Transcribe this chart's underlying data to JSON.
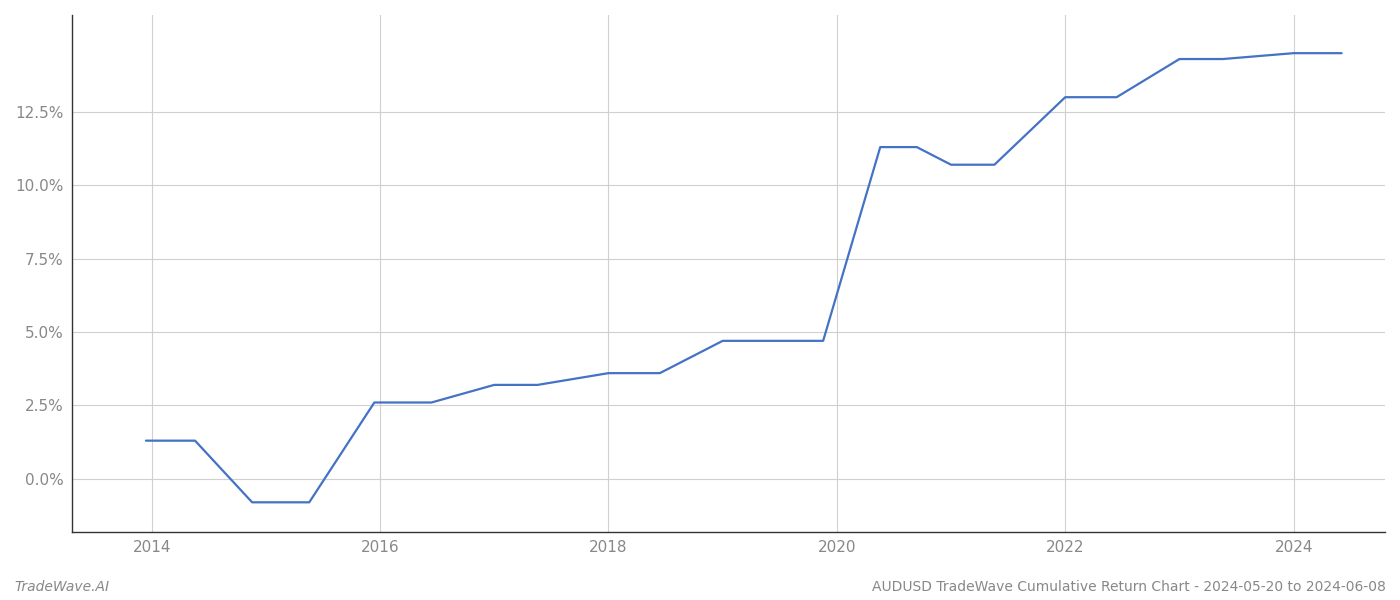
{
  "x_years": [
    2013.95,
    2014.38,
    2014.88,
    2015.38,
    2015.95,
    2016.45,
    2017.0,
    2017.38,
    2018.0,
    2018.45,
    2019.0,
    2019.38,
    2019.88,
    2020.38,
    2020.7,
    2021.0,
    2021.38,
    2022.0,
    2022.45,
    2023.0,
    2023.38,
    2024.0,
    2024.42
  ],
  "y_values": [
    0.013,
    0.013,
    -0.008,
    -0.008,
    0.026,
    0.026,
    0.032,
    0.032,
    0.036,
    0.036,
    0.047,
    0.047,
    0.047,
    0.113,
    0.113,
    0.107,
    0.107,
    0.13,
    0.13,
    0.143,
    0.143,
    0.145,
    0.145
  ],
  "line_color": "#4472c4",
  "line_width": 1.6,
  "background_color": "#ffffff",
  "grid_color": "#d0d0d0",
  "yticks": [
    0.0,
    0.025,
    0.05,
    0.075,
    0.1,
    0.125
  ],
  "ytick_labels": [
    "0.0%",
    "2.5%",
    "5.0%",
    "7.5%",
    "10.0%",
    "12.5%"
  ],
  "xtick_labels": [
    "2014",
    "2016",
    "2018",
    "2020",
    "2022",
    "2024"
  ],
  "xtick_positions": [
    2014,
    2016,
    2018,
    2020,
    2022,
    2024
  ],
  "xlim": [
    2013.3,
    2024.8
  ],
  "ylim": [
    -0.018,
    0.158
  ],
  "footer_left": "TradeWave.AI",
  "footer_right": "AUDUSD TradeWave Cumulative Return Chart - 2024-05-20 to 2024-06-08",
  "tick_color": "#888888",
  "footer_color": "#888888",
  "spine_color": "#333333"
}
